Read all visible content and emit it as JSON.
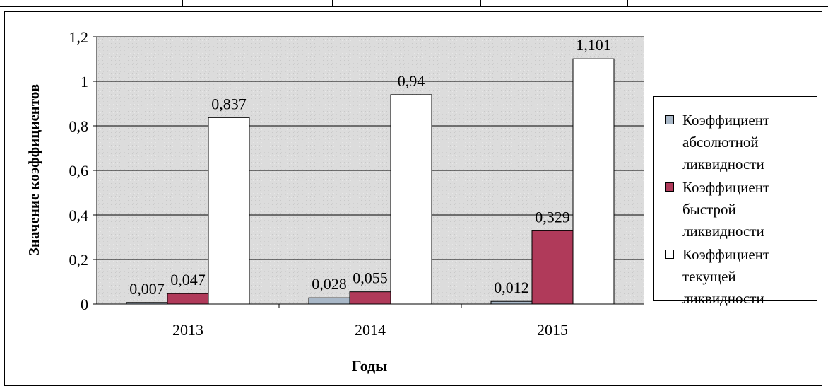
{
  "chart_data": {
    "type": "bar",
    "categories": [
      "2013",
      "2014",
      "2015"
    ],
    "series": [
      {
        "name": "Коэффициент абсолютной ликвидности",
        "values": [
          0.007,
          0.028,
          0.012
        ],
        "labels": [
          "0,007",
          "0,028",
          "0,012"
        ],
        "color": "#a9b8c8"
      },
      {
        "name": "Коэффициент быстрой ликвидности",
        "values": [
          0.047,
          0.055,
          0.329
        ],
        "labels": [
          "0,047",
          "0,055",
          "0,329"
        ],
        "color": "#b03a5a"
      },
      {
        "name": "Коэффициент текущей ликвидности",
        "values": [
          0.837,
          0.94,
          1.101
        ],
        "labels": [
          "0,837",
          "0,94",
          "1,101"
        ],
        "color": "#ffffff"
      }
    ],
    "yticks": [
      0,
      0.2,
      0.4,
      0.6,
      0.8,
      1,
      1.2
    ],
    "ytick_labels": [
      "0",
      "0,2",
      "0,4",
      "0,6",
      "0,8",
      "1",
      "1,2"
    ],
    "ylim": [
      0,
      1.2
    ],
    "xlabel": "Годы",
    "ylabel": "Значение коэффициентов",
    "grid": true,
    "legend_position": "right",
    "plot_background": "#d9d9d9"
  }
}
